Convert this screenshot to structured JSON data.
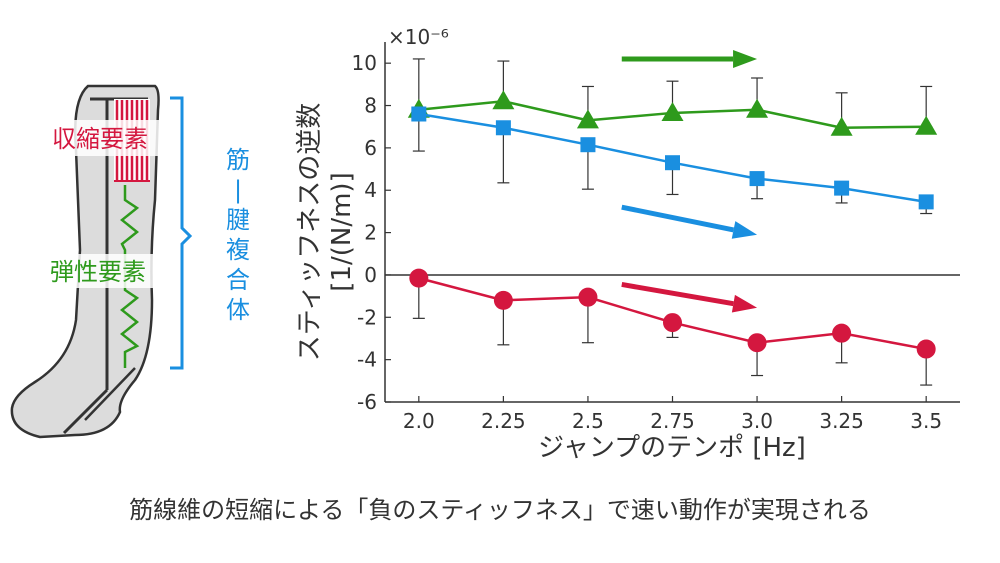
{
  "colors": {
    "green": "#2e9a1c",
    "blue": "#1a8fe0",
    "red": "#d4173f",
    "axis": "#333333",
    "leg_fill": "#dcdcdc"
  },
  "diagram": {
    "contractile_label": "収縮要素",
    "elastic_label": "弾性要素",
    "complex_label": [
      "筋",
      "|",
      "腱",
      "複",
      "合",
      "体"
    ]
  },
  "chart_data": {
    "type": "line",
    "x": [
      2.0,
      2.25,
      2.5,
      2.75,
      3.0,
      3.25,
      3.5
    ],
    "x_tick_labels": [
      "2.0",
      "2.25",
      "2.5",
      "2.75",
      "3.0",
      "3.25",
      "3.5"
    ],
    "xlim": [
      1.9,
      3.6
    ],
    "ylim": [
      -6,
      11
    ],
    "y_ticks": [
      -6,
      -4,
      -2,
      0,
      2,
      4,
      6,
      8,
      10
    ],
    "y_tick_labels": [
      "-6",
      "-4",
      "-2",
      "0",
      "2",
      "4",
      "6",
      "8",
      "10"
    ],
    "exponent_label": "×10⁻⁶",
    "xlabel": "ジャンプのテンポ [Hz]",
    "ylabel_line1": "スティッフネスの逆数",
    "ylabel_line2": "[1/(N/m)]",
    "series": [
      {
        "color": "green",
        "marker": "triangle",
        "values": [
          7.8,
          8.2,
          7.3,
          7.65,
          7.8,
          6.95,
          7.0
        ],
        "err_upper": [
          10.2,
          10.1,
          8.9,
          9.15,
          9.3,
          8.6,
          8.9
        ],
        "err_lower": [
          7.8,
          8.2,
          7.3,
          7.65,
          7.8,
          6.95,
          7.0
        ]
      },
      {
        "color": "blue",
        "marker": "square",
        "values": [
          7.6,
          6.95,
          6.15,
          5.3,
          4.55,
          4.1,
          3.45
        ],
        "err_upper": [
          7.6,
          6.95,
          6.15,
          5.3,
          4.55,
          4.1,
          3.45
        ],
        "err_lower": [
          5.85,
          4.35,
          4.05,
          3.8,
          3.6,
          3.4,
          2.9
        ]
      },
      {
        "color": "red",
        "marker": "circle",
        "values": [
          -0.15,
          -1.2,
          -1.05,
          -2.25,
          -3.2,
          -2.75,
          -3.5
        ],
        "err_upper": [
          -0.15,
          -1.2,
          -1.05,
          -2.25,
          -3.2,
          -2.75,
          -3.5
        ],
        "err_lower": [
          -2.05,
          -3.3,
          -3.2,
          -2.95,
          -4.75,
          -4.15,
          -5.2
        ]
      }
    ],
    "trend_arrows": [
      {
        "color": "green",
        "x1": 2.6,
        "y1": 10.2,
        "x2": 3.0,
        "y2": 10.2
      },
      {
        "color": "blue",
        "x1": 2.6,
        "y1": 3.2,
        "x2": 3.0,
        "y2": 1.9
      },
      {
        "color": "red",
        "x1": 2.6,
        "y1": -0.45,
        "x2": 3.0,
        "y2": -1.55
      }
    ]
  },
  "caption": "筋線維の短縮による「負のスティッフネス」で速い動作が実現される"
}
